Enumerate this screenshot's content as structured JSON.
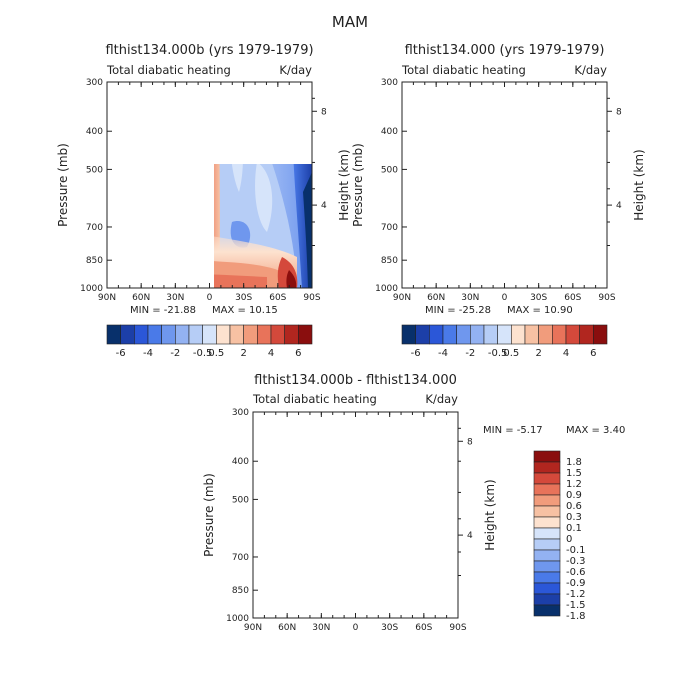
{
  "figure_title": "MAM",
  "chart_data": [
    {
      "type": "contour",
      "title": "flthist134.000b (yrs 1979-1979)",
      "subtitle_left": "Total diabatic heating",
      "subtitle_right": "K/day",
      "xlabel": "",
      "ylabel": "Pressure (mb)",
      "ylabel_right": "Height (km)",
      "x_ticks": [
        "90N",
        "60N",
        "30N",
        "0",
        "30S",
        "60S",
        "90S"
      ],
      "y_ticks": [
        "300",
        "400",
        "500",
        "700",
        "850",
        "1000"
      ],
      "y_ticks_right": [
        "8",
        "4"
      ],
      "min_label": "MIN = -21.88",
      "max_label": "MAX = 10.15",
      "min": -21.88,
      "max": 10.15,
      "colorbar_labels": [
        "-6",
        "-4",
        "-2",
        "-0.5",
        "0.5",
        "2",
        "4",
        "6"
      ]
    },
    {
      "type": "contour",
      "title": "flthist134.000 (yrs 1979-1979)",
      "subtitle_left": "Total diabatic heating",
      "subtitle_right": "K/day",
      "xlabel": "",
      "ylabel": "Pressure (mb)",
      "ylabel_right": "Height (km)",
      "x_ticks": [
        "90N",
        "60N",
        "30N",
        "0",
        "30S",
        "60S",
        "90S"
      ],
      "y_ticks": [
        "300",
        "400",
        "500",
        "700",
        "850",
        "1000"
      ],
      "y_ticks_right": [
        "8",
        "4"
      ],
      "min_label": "MIN = -25.28",
      "max_label": "MAX = 10.90",
      "min": -25.28,
      "max": 10.9,
      "colorbar_labels": [
        "-6",
        "-4",
        "-2",
        "-0.5",
        "0.5",
        "2",
        "4",
        "6"
      ]
    },
    {
      "type": "contour",
      "title": "flthist134.000b - flthist134.000",
      "subtitle_left": "Total diabatic heating",
      "subtitle_right": "K/day",
      "xlabel": "",
      "ylabel": "Pressure (mb)",
      "ylabel_right": "Height (km)",
      "x_ticks": [
        "90N",
        "60N",
        "30N",
        "0",
        "30S",
        "60S",
        "90S"
      ],
      "y_ticks": [
        "300",
        "400",
        "500",
        "700",
        "850",
        "1000"
      ],
      "y_ticks_right": [
        "8",
        "4"
      ],
      "min_label": "MIN = -5.17",
      "max_label": "MAX = 3.40",
      "min": -5.17,
      "max": 3.4,
      "colorbar_labels": [
        "1.8",
        "1.5",
        "1.2",
        "0.9",
        "0.6",
        "0.3",
        "0.1",
        "0",
        "-0.1",
        "-0.3",
        "-0.6",
        "-0.9",
        "-1.2",
        "-1.5",
        "-1.8"
      ]
    }
  ],
  "colors": {
    "scale": [
      "#08306b",
      "#1c3fa8",
      "#2b57d8",
      "#4a7ae8",
      "#6f97ee",
      "#93b2f2",
      "#b6cdf6",
      "#d6e4fa",
      "#fde2cf",
      "#f7c1a3",
      "#f19c7c",
      "#e8735a",
      "#d4493b",
      "#b1261f",
      "#8a0e0e"
    ]
  }
}
